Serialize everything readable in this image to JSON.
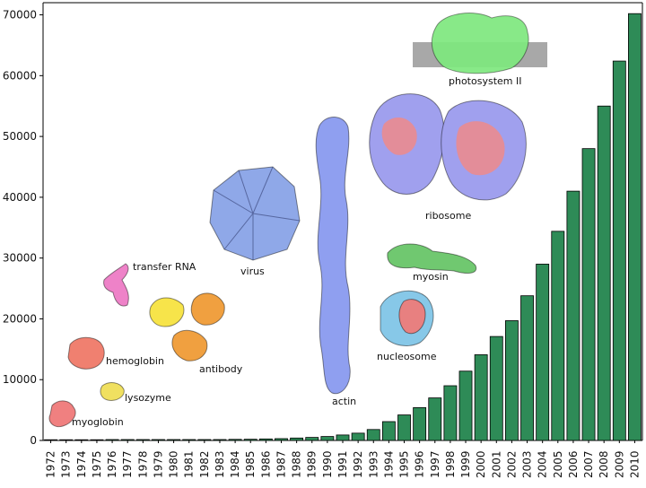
{
  "chart_data": {
    "type": "bar",
    "title": "",
    "xlabel": "",
    "ylabel": "",
    "ylim": [
      0,
      72000
    ],
    "yticks": [
      0,
      10000,
      20000,
      30000,
      40000,
      50000,
      60000,
      70000
    ],
    "grid": false,
    "legend": "none",
    "bar_color": "#2e8b57",
    "categories": [
      "1972",
      "1973",
      "1974",
      "1975",
      "1976",
      "1977",
      "1978",
      "1979",
      "1980",
      "1981",
      "1982",
      "1983",
      "1984",
      "1985",
      "1986",
      "1987",
      "1988",
      "1989",
      "1990",
      "1991",
      "1992",
      "1993",
      "1994",
      "1995",
      "1996",
      "1997",
      "1998",
      "1999",
      "2000",
      "2001",
      "2002",
      "2003",
      "2004",
      "2005",
      "2006",
      "2007",
      "2008",
      "2009",
      "2010"
    ],
    "values": [
      0,
      0,
      0,
      0,
      20,
      40,
      60,
      70,
      80,
      90,
      110,
      150,
      180,
      200,
      250,
      300,
      400,
      500,
      650,
      900,
      1200,
      1800,
      3100,
      4200,
      5400,
      7000,
      9000,
      11400,
      14100,
      17100,
      19700,
      23800,
      29000,
      34400,
      41000,
      48000,
      55000,
      62400,
      70200
    ],
    "annotations": [
      {
        "label": "myoglobin",
        "color": "#f08080"
      },
      {
        "label": "lysozyme",
        "color": "#f0e060"
      },
      {
        "label": "hemoglobin",
        "color": "#f08070"
      },
      {
        "label": "transfer RNA",
        "color": "#ee82c8"
      },
      {
        "label": "antibody",
        "color": "#f0a040"
      },
      {
        "label": "virus",
        "color": "#8fa8e8"
      },
      {
        "label": "actin",
        "color": "#8f9ff0"
      },
      {
        "label": "nucleosome",
        "color": "#87c8e8"
      },
      {
        "label": "myosin",
        "color": "#70c870"
      },
      {
        "label": "ribosome",
        "color": "#a0a0ee"
      },
      {
        "label": "photosystem II",
        "color": "#7ee87e"
      }
    ]
  }
}
